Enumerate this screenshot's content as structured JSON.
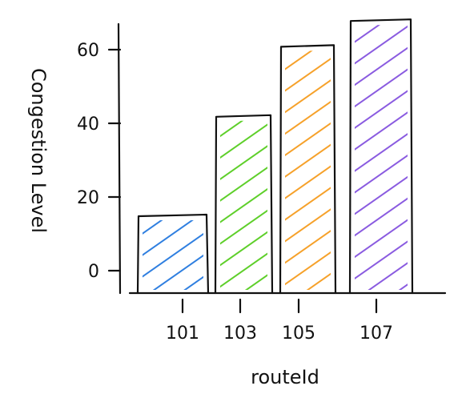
{
  "chart_data": {
    "type": "bar",
    "categories": [
      "101",
      "103",
      "105",
      "107"
    ],
    "values": [
      15,
      42,
      61,
      68
    ],
    "xlabel": "routeId",
    "ylabel": "Congestion Level",
    "yticks": [
      "0",
      "20",
      "40",
      "60"
    ],
    "ylim": [
      -5,
      70
    ],
    "grid": false,
    "legend": false,
    "colors": [
      "#2f7fe0",
      "#5ecf2a",
      "#f6a12a",
      "#8a5be0"
    ],
    "style": "hand-drawn hatched bars"
  }
}
